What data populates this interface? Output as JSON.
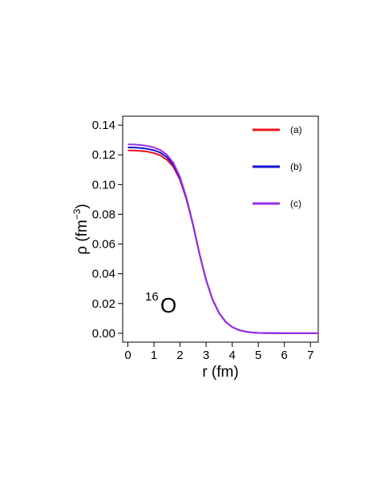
{
  "chart_data": {
    "type": "line",
    "title": "",
    "xlabel": "r  (fm)",
    "ylabel": {
      "prefix": "ρ  (fm",
      "exponent": "−3",
      "suffix": ")"
    },
    "xlim": [
      -0.2,
      7.3
    ],
    "ylim": [
      -0.006,
      0.146
    ],
    "x_ticks": [
      0,
      1,
      2,
      3,
      4,
      5,
      6,
      7
    ],
    "y_ticks": [
      0.0,
      0.02,
      0.04,
      0.06,
      0.08,
      0.1,
      0.12,
      0.14
    ],
    "y_tick_labels": [
      "0.00",
      "0.02",
      "0.04",
      "0.06",
      "0.08",
      "0.10",
      "0.12",
      "0.14"
    ],
    "grid": false,
    "legend_position": "top-right",
    "annotation": {
      "mass_number": "16",
      "symbol": "O"
    },
    "x": [
      0,
      0.25,
      0.5,
      0.75,
      1,
      1.25,
      1.5,
      1.75,
      2,
      2.25,
      2.5,
      2.75,
      3,
      3.25,
      3.5,
      3.75,
      4,
      4.25,
      4.5,
      4.75,
      5,
      5.5,
      6,
      6.5,
      7,
      7.3
    ],
    "series": [
      {
        "name": "(a)",
        "color": "#e8141c",
        "values": [
          0.123,
          0.1229,
          0.1226,
          0.1221,
          0.1212,
          0.1196,
          0.1166,
          0.1118,
          0.1031,
          0.09,
          0.0728,
          0.053,
          0.0358,
          0.0226,
          0.0135,
          0.0077,
          0.0042,
          0.0022,
          0.0011,
          0.0005,
          0.0002,
          0.0001,
          0.0,
          0.0,
          0.0,
          0.0
        ]
      },
      {
        "name": "(b)",
        "color": "#1410d4",
        "values": [
          0.125,
          0.1249,
          0.1246,
          0.124,
          0.1231,
          0.1214,
          0.1184,
          0.1132,
          0.1041,
          0.0905,
          0.073,
          0.053,
          0.0357,
          0.0225,
          0.0134,
          0.0077,
          0.0042,
          0.0022,
          0.0011,
          0.0005,
          0.0002,
          0.0001,
          0.0,
          0.0,
          0.0,
          0.0
        ]
      },
      {
        "name": "(c)",
        "color": "#9a30e8",
        "values": [
          0.127,
          0.1269,
          0.1266,
          0.126,
          0.125,
          0.1232,
          0.12,
          0.1145,
          0.105,
          0.091,
          0.0732,
          0.0531,
          0.0357,
          0.0225,
          0.0134,
          0.0076,
          0.0042,
          0.0022,
          0.0011,
          0.0005,
          0.0002,
          0.0001,
          0.0,
          0.0,
          0.0,
          0.0
        ]
      }
    ]
  }
}
